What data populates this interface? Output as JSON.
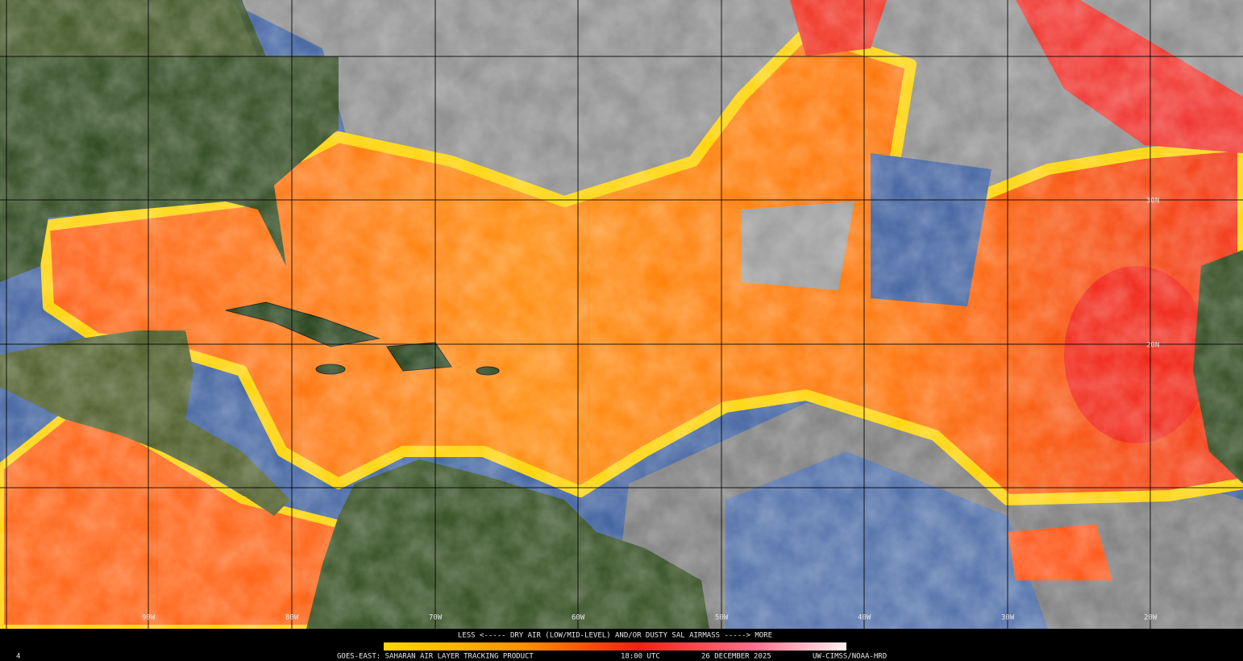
{
  "map": {
    "latitude_labels": [
      "30N",
      "20N"
    ],
    "longitude_labels": [
      "90W",
      "80W",
      "70W",
      "60W",
      "50W",
      "40W",
      "30W",
      "20W"
    ],
    "legend": {
      "text": "LESS <----- DRY AIR (LOW/MID-LEVEL) AND/OR DUSTY SAL AIRMASS -----> MORE"
    },
    "footer": {
      "product": "GOES-EAST: SAHARAN AIR LAYER TRACKING PRODUCT",
      "time": "18:00 UTC",
      "date": "26 DECEMBER 2025",
      "credit": "UW-CIMSS/NOAA-HRD"
    },
    "frame_number": "4"
  }
}
